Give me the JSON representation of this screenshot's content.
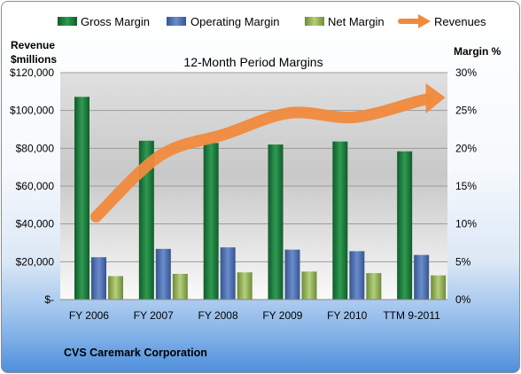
{
  "chart_data": {
    "type": "bar",
    "title": "12-Month Period Margins",
    "company": "CVS Caremark Corporation",
    "left_axis_label": [
      "Revenue",
      "$millions"
    ],
    "right_axis_label": "Margin %",
    "categories": [
      "FY 2006",
      "FY 2007",
      "FY 2008",
      "FY 2009",
      "FY 2010",
      "TTM 9-2011"
    ],
    "series": [
      {
        "name": "Gross Margin",
        "axis": "right",
        "color": "#1e7b3c",
        "values": [
          26.8,
          21.0,
          20.7,
          20.5,
          20.9,
          19.6
        ]
      },
      {
        "name": "Operating Margin",
        "axis": "right",
        "color": "#4e70b0",
        "values": [
          5.6,
          6.7,
          6.9,
          6.6,
          6.4,
          5.9
        ]
      },
      {
        "name": "Net Margin",
        "axis": "right",
        "color": "#9bbb59",
        "values": [
          3.1,
          3.4,
          3.6,
          3.7,
          3.5,
          3.2
        ]
      }
    ],
    "line": {
      "name": "Revenues",
      "axis": "left",
      "color": "#f08a3c",
      "values": [
        43800,
        76300,
        87500,
        98700,
        96400,
        105000
      ]
    },
    "left_axis": {
      "min": 0,
      "max": 120000,
      "step": 20000,
      "tick_labels": [
        "$-",
        "$20,000",
        "$40,000",
        "$60,000",
        "$80,000",
        "$100,000",
        "$120,000"
      ]
    },
    "right_axis": {
      "min": 0,
      "max": 30,
      "step": 5,
      "tick_labels": [
        "0%",
        "5%",
        "10%",
        "15%",
        "20%",
        "25%",
        "30%"
      ]
    },
    "legend_position": "top",
    "grid": true
  }
}
